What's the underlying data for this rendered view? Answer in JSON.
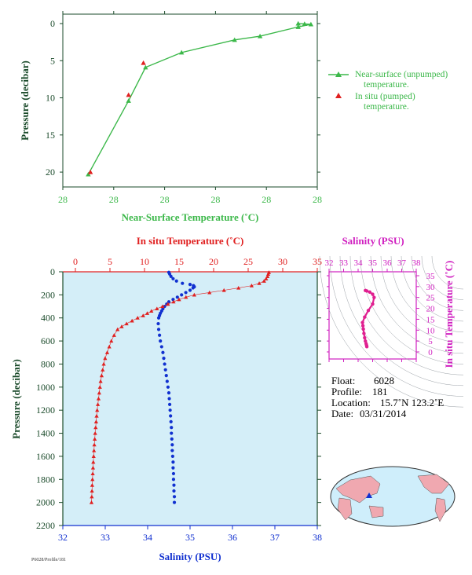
{
  "colors": {
    "green": "#3cb84a",
    "red": "#e02020",
    "blue": "#1030d0",
    "magenta": "#d020c0",
    "axis_dark": "#1a4a2a",
    "plot_bg": "#d4eef8",
    "land": "#f0a8b0",
    "ocean": "#cfeefb"
  },
  "chart_data": [
    {
      "type": "line",
      "name": "near-surface",
      "xlabel": "Near-Surface Temperature (˚C)",
      "ylabel": "Pressure (decibar)",
      "x_tick_labels": [
        "28",
        "28",
        "28",
        "28",
        "28",
        "28"
      ],
      "y_ticks": [
        0,
        5,
        10,
        15,
        20
      ],
      "ylim": [
        0,
        22
      ],
      "series": [
        {
          "name": "Near-surface (unpumped) temperature.",
          "marker": "triangle",
          "points": [
            [
              28.61,
              0.0
            ],
            [
              28.64,
              0.05
            ],
            [
              28.67,
              0.1
            ],
            [
              28.61,
              0.45
            ],
            [
              28.43,
              1.7
            ],
            [
              28.31,
              2.2
            ],
            [
              28.06,
              3.9
            ],
            [
              27.89,
              5.9
            ],
            [
              27.81,
              10.4
            ],
            [
              27.62,
              20.3
            ]
          ]
        },
        {
          "name": "In situ (pumped) temperature.",
          "marker": "triangle",
          "points": [
            [
              27.88,
              5.3
            ],
            [
              27.81,
              9.6
            ],
            [
              27.63,
              20.0
            ]
          ]
        }
      ],
      "legend": [
        "Near-surface (unpumped)",
        "temperature.",
        "In situ (pumped)",
        "temperature."
      ]
    },
    {
      "type": "line",
      "name": "profile",
      "title_top": "In situ Temperature (˚C)",
      "xlabel": "Salinity (PSU)",
      "ylabel": "Pressure (decibar)",
      "temp_ticks": [
        0,
        5,
        10,
        15,
        20,
        25,
        30,
        35
      ],
      "sal_ticks": [
        32,
        33,
        34,
        35,
        36,
        37,
        38
      ],
      "pressure_ticks": [
        0,
        200,
        400,
        600,
        800,
        1000,
        1200,
        1400,
        1600,
        1800,
        2000,
        2200
      ],
      "ylim": [
        0,
        2200
      ],
      "temperature": [
        [
          28.0,
          5
        ],
        [
          27.9,
          20
        ],
        [
          27.8,
          40
        ],
        [
          27.6,
          60
        ],
        [
          27.3,
          80
        ],
        [
          26.6,
          100
        ],
        [
          25.5,
          120
        ],
        [
          23.6,
          140
        ],
        [
          21.5,
          160
        ],
        [
          19.4,
          180
        ],
        [
          17.2,
          200
        ],
        [
          16.0,
          220
        ],
        [
          15.0,
          240
        ],
        [
          14.2,
          260
        ],
        [
          13.4,
          280
        ],
        [
          12.6,
          300
        ],
        [
          11.8,
          320
        ],
        [
          11.0,
          340
        ],
        [
          10.4,
          360
        ],
        [
          9.8,
          380
        ],
        [
          9.0,
          400
        ],
        [
          8.2,
          425
        ],
        [
          7.4,
          450
        ],
        [
          6.7,
          475
        ],
        [
          6.1,
          500
        ],
        [
          5.6,
          550
        ],
        [
          5.2,
          600
        ],
        [
          4.9,
          650
        ],
        [
          4.6,
          700
        ],
        [
          4.3,
          750
        ],
        [
          4.1,
          800
        ],
        [
          3.95,
          850
        ],
        [
          3.8,
          900
        ],
        [
          3.65,
          950
        ],
        [
          3.55,
          1000
        ],
        [
          3.45,
          1050
        ],
        [
          3.35,
          1100
        ],
        [
          3.25,
          1150
        ],
        [
          3.15,
          1200
        ],
        [
          3.07,
          1250
        ],
        [
          3.0,
          1300
        ],
        [
          2.93,
          1350
        ],
        [
          2.86,
          1400
        ],
        [
          2.8,
          1450
        ],
        [
          2.74,
          1500
        ],
        [
          2.69,
          1550
        ],
        [
          2.64,
          1600
        ],
        [
          2.59,
          1650
        ],
        [
          2.55,
          1700
        ],
        [
          2.51,
          1750
        ],
        [
          2.47,
          1800
        ],
        [
          2.43,
          1850
        ],
        [
          2.4,
          1900
        ],
        [
          2.37,
          1950
        ],
        [
          2.33,
          2000
        ]
      ],
      "salinity": [
        [
          34.5,
          5
        ],
        [
          34.52,
          20
        ],
        [
          34.55,
          40
        ],
        [
          34.6,
          60
        ],
        [
          34.68,
          80
        ],
        [
          34.82,
          100
        ],
        [
          35.0,
          110
        ],
        [
          35.08,
          120
        ],
        [
          35.1,
          130
        ],
        [
          35.07,
          140
        ],
        [
          35.0,
          160
        ],
        [
          34.9,
          180
        ],
        [
          34.8,
          200
        ],
        [
          34.7,
          220
        ],
        [
          34.6,
          240
        ],
        [
          34.5,
          260
        ],
        [
          34.45,
          280
        ],
        [
          34.4,
          300
        ],
        [
          34.36,
          320
        ],
        [
          34.33,
          340
        ],
        [
          34.3,
          360
        ],
        [
          34.28,
          380
        ],
        [
          34.26,
          400
        ],
        [
          34.25,
          450
        ],
        [
          34.26,
          500
        ],
        [
          34.28,
          550
        ],
        [
          34.3,
          600
        ],
        [
          34.33,
          650
        ],
        [
          34.36,
          700
        ],
        [
          34.38,
          750
        ],
        [
          34.4,
          800
        ],
        [
          34.42,
          850
        ],
        [
          34.44,
          900
        ],
        [
          34.46,
          950
        ],
        [
          34.48,
          1000
        ],
        [
          34.5,
          1050
        ],
        [
          34.51,
          1100
        ],
        [
          34.52,
          1150
        ],
        [
          34.53,
          1200
        ],
        [
          34.54,
          1250
        ],
        [
          34.55,
          1300
        ],
        [
          34.56,
          1350
        ],
        [
          34.56,
          1400
        ],
        [
          34.57,
          1450
        ],
        [
          34.58,
          1500
        ],
        [
          34.58,
          1550
        ],
        [
          34.59,
          1600
        ],
        [
          34.6,
          1650
        ],
        [
          34.6,
          1700
        ],
        [
          34.61,
          1750
        ],
        [
          34.61,
          1800
        ],
        [
          34.62,
          1850
        ],
        [
          34.62,
          1900
        ],
        [
          34.63,
          1950
        ],
        [
          34.63,
          2000
        ]
      ]
    },
    {
      "type": "scatter",
      "name": "ts-diagram",
      "title": "Salinity (PSU)",
      "ylabel": "In situ Temperature (˚C)",
      "sal_ticks": [
        32,
        33,
        34,
        35,
        36,
        37,
        38
      ],
      "temp_ticks": [
        0,
        5,
        10,
        15,
        20,
        25,
        30,
        35
      ],
      "points": [
        [
          34.6,
          2.4
        ],
        [
          34.58,
          3.0
        ],
        [
          34.55,
          3.8
        ],
        [
          34.5,
          5.0
        ],
        [
          34.45,
          6.5
        ],
        [
          34.4,
          8.5
        ],
        [
          34.36,
          10.5
        ],
        [
          34.33,
          12.0
        ],
        [
          34.3,
          13.5
        ],
        [
          34.45,
          16.0
        ],
        [
          34.7,
          19.0
        ],
        [
          35.0,
          22.0
        ],
        [
          35.1,
          25.0
        ],
        [
          35.0,
          26.5
        ],
        [
          34.8,
          27.5
        ],
        [
          34.6,
          28.0
        ],
        [
          34.5,
          28.2
        ]
      ]
    }
  ],
  "info": {
    "float_label": "Float:",
    "float_value": "6028",
    "profile_label": "Profile:",
    "profile_value": "181",
    "location_label": "Location:",
    "location_value": "15.7˚N  123.2˚E",
    "date_label": "Date:",
    "date_value": "03/31/2014"
  },
  "footer_text": "P6028/Profile/181"
}
